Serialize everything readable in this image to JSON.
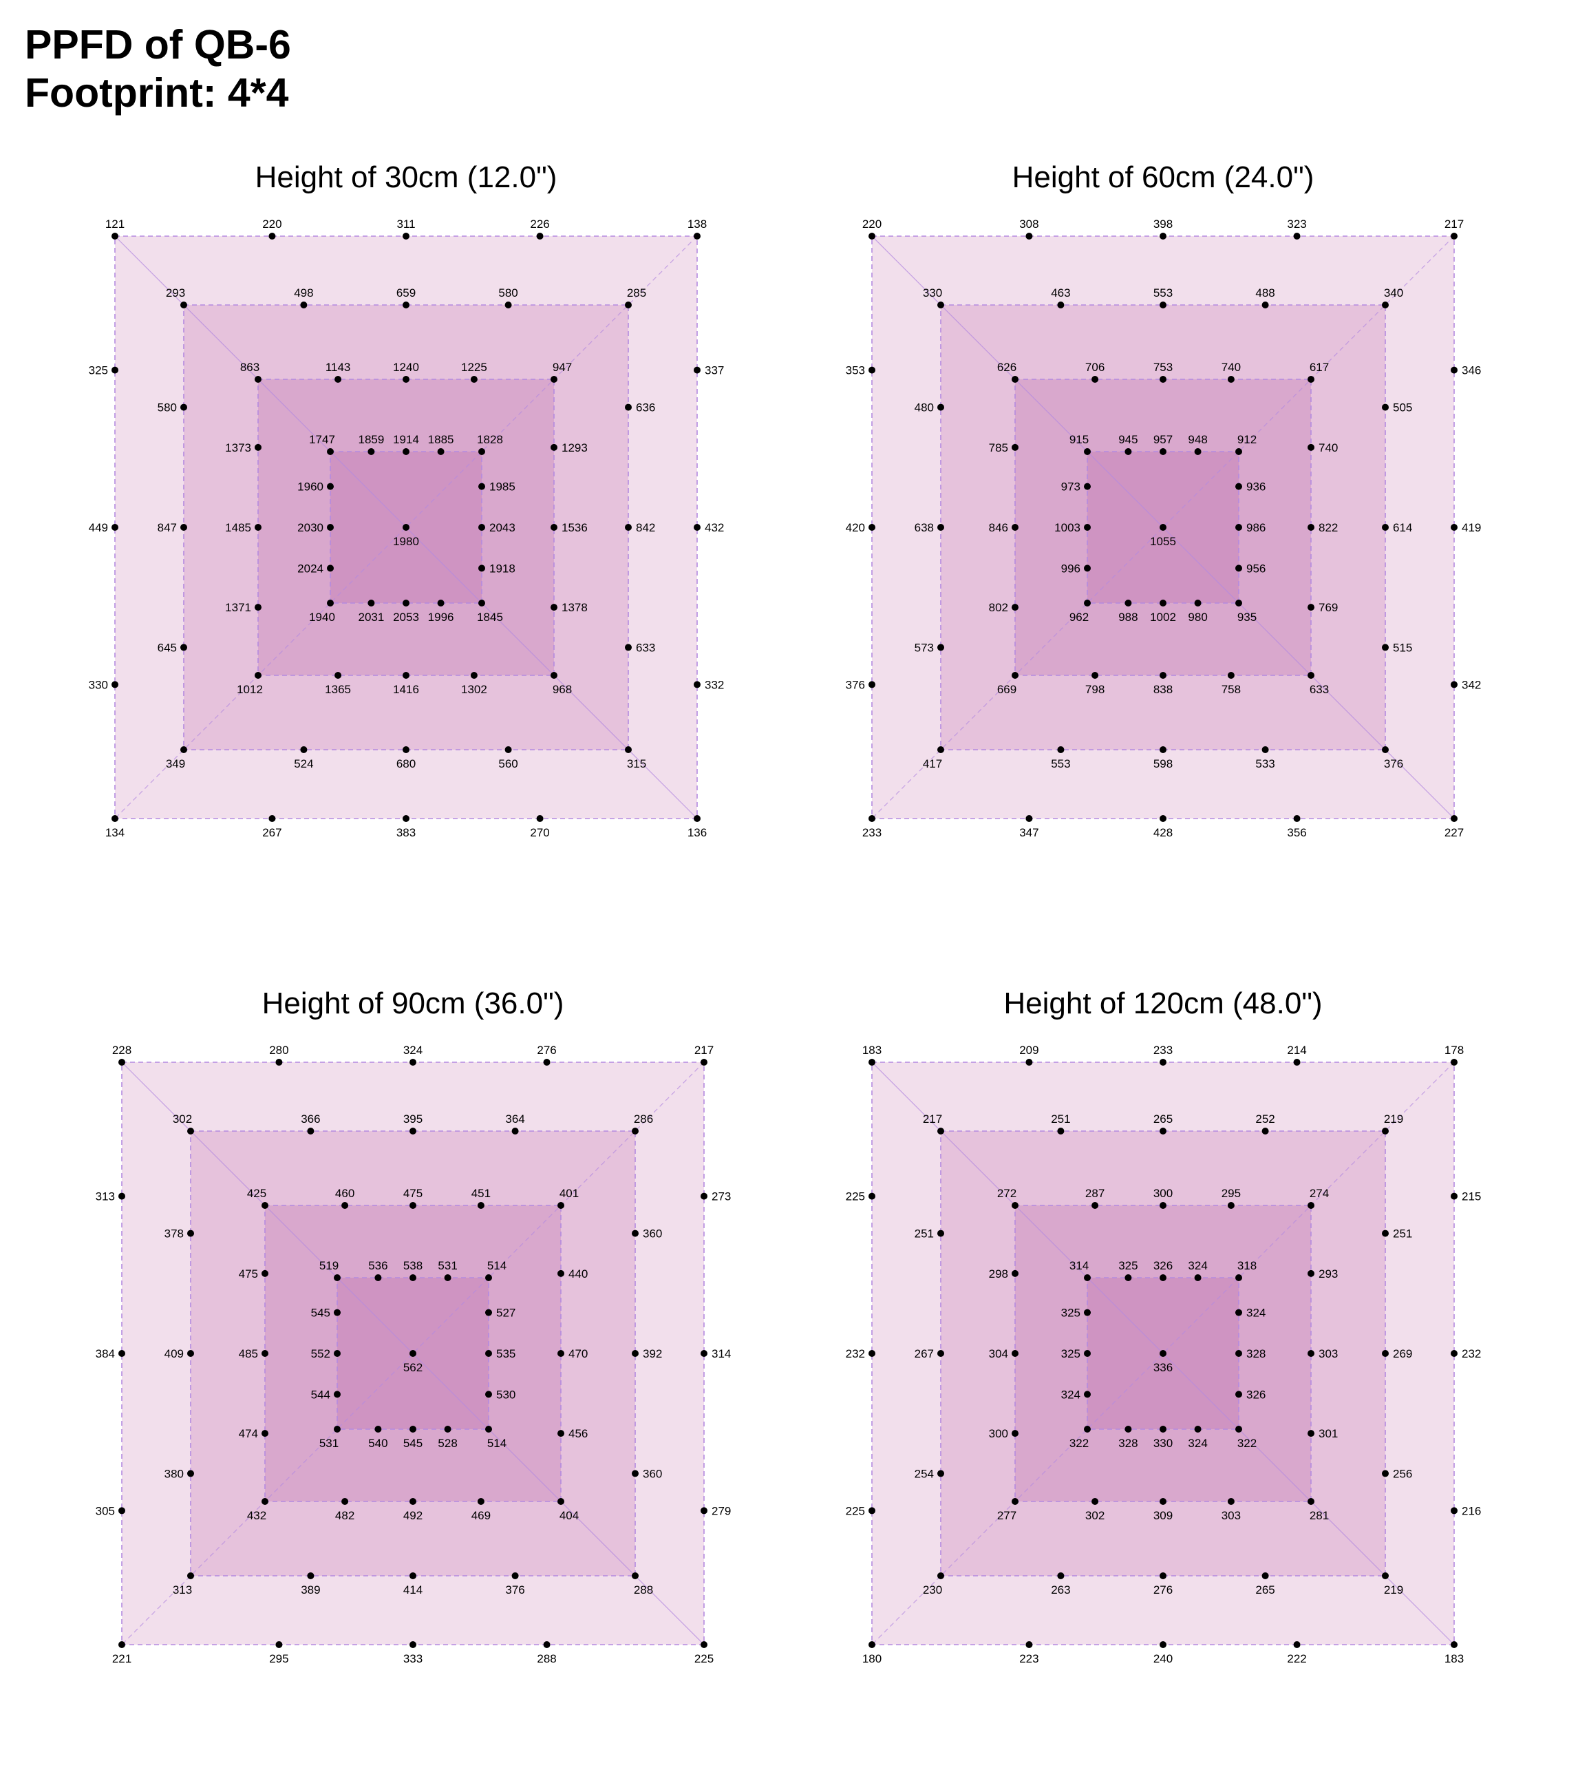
{
  "header": {
    "title_line1": "PPFD of QB-6",
    "title_line2": "Footprint: 4*4"
  },
  "colors": {
    "ring_outer": "#f2dfec",
    "ring_2": "#e6c2dc",
    "ring_3": "#d9a8cd",
    "ring_inner": "#cf94c2",
    "border": "#b48ae0",
    "diagonal": "#b48ae0",
    "point": "#000000"
  },
  "chart_data": [
    {
      "type": "heatmap",
      "title": "Height of 30cm (12.0\")",
      "rings": [
        {
          "top": [
            121,
            220,
            311,
            226,
            138
          ],
          "right": [
            337,
            432,
            332
          ],
          "bottom": [
            136,
            270,
            383,
            267,
            134
          ],
          "left": [
            330,
            449,
            325
          ]
        },
        {
          "top": [
            293,
            498,
            659,
            580,
            285
          ],
          "right": [
            636,
            842,
            633
          ],
          "bottom": [
            315,
            560,
            680,
            524,
            349
          ],
          "left": [
            645,
            847,
            580
          ]
        },
        {
          "top": [
            863,
            1143,
            1240,
            1225,
            947
          ],
          "right": [
            1293,
            1536,
            1378
          ],
          "bottom": [
            968,
            1302,
            1416,
            1365,
            1012
          ],
          "left": [
            1371,
            1485,
            1373
          ]
        },
        {
          "top": [
            1747,
            1859,
            1914,
            1885,
            1828
          ],
          "right": [
            1985,
            2043,
            1918
          ],
          "bottom": [
            1845,
            1996,
            2053,
            2031,
            1940
          ],
          "left": [
            2024,
            2030,
            1960
          ]
        }
      ],
      "center": 1980
    },
    {
      "type": "heatmap",
      "title": "Height of 60cm (24.0\")",
      "rings": [
        {
          "top": [
            220,
            308,
            398,
            323,
            217
          ],
          "right": [
            346,
            419,
            342
          ],
          "bottom": [
            227,
            356,
            428,
            347,
            233
          ],
          "left": [
            376,
            420,
            353
          ]
        },
        {
          "top": [
            330,
            463,
            553,
            488,
            340
          ],
          "right": [
            505,
            614,
            515
          ],
          "bottom": [
            376,
            533,
            598,
            553,
            417
          ],
          "left": [
            573,
            638,
            480
          ]
        },
        {
          "top": [
            626,
            706,
            753,
            740,
            617
          ],
          "right": [
            740,
            822,
            769
          ],
          "bottom": [
            633,
            758,
            838,
            798,
            669
          ],
          "left": [
            802,
            846,
            785
          ]
        },
        {
          "top": [
            915,
            945,
            957,
            948,
            912
          ],
          "right": [
            936,
            986,
            956
          ],
          "bottom": [
            935,
            980,
            1002,
            988,
            962
          ],
          "left": [
            996,
            1003,
            973
          ]
        }
      ],
      "center": 1055
    },
    {
      "type": "heatmap",
      "title": "Height of 90cm (36.0\")",
      "rings": [
        {
          "top": [
            228,
            280,
            324,
            276,
            217
          ],
          "right": [
            273,
            314,
            279
          ],
          "bottom": [
            225,
            288,
            333,
            295,
            221
          ],
          "left": [
            305,
            384,
            313
          ]
        },
        {
          "top": [
            302,
            366,
            395,
            364,
            286
          ],
          "right": [
            360,
            392,
            360
          ],
          "bottom": [
            288,
            376,
            414,
            389,
            313
          ],
          "left": [
            380,
            409,
            378
          ]
        },
        {
          "top": [
            425,
            460,
            475,
            451,
            401
          ],
          "right": [
            440,
            470,
            456
          ],
          "bottom": [
            404,
            469,
            492,
            482,
            432
          ],
          "left": [
            474,
            485,
            475
          ]
        },
        {
          "top": [
            519,
            536,
            538,
            531,
            514
          ],
          "right": [
            527,
            535,
            530
          ],
          "bottom": [
            514,
            528,
            545,
            540,
            531
          ],
          "left": [
            544,
            552,
            545
          ]
        }
      ],
      "center": 562
    },
    {
      "type": "heatmap",
      "title": "Height of 120cm (48.0\")",
      "rings": [
        {
          "top": [
            183,
            209,
            233,
            214,
            178
          ],
          "right": [
            215,
            232,
            216
          ],
          "bottom": [
            183,
            222,
            240,
            223,
            180
          ],
          "left": [
            225,
            232,
            225
          ]
        },
        {
          "top": [
            217,
            251,
            265,
            252,
            219
          ],
          "right": [
            251,
            269,
            256
          ],
          "bottom": [
            219,
            265,
            276,
            263,
            230
          ],
          "left": [
            254,
            267,
            251
          ]
        },
        {
          "top": [
            272,
            287,
            300,
            295,
            274
          ],
          "right": [
            293,
            303,
            301
          ],
          "bottom": [
            281,
            303,
            309,
            302,
            277
          ],
          "left": [
            300,
            304,
            298
          ]
        },
        {
          "top": [
            314,
            325,
            326,
            324,
            318
          ],
          "right": [
            324,
            328,
            326
          ],
          "bottom": [
            322,
            324,
            330,
            328,
            322
          ],
          "left": [
            324,
            325,
            325
          ]
        }
      ],
      "center": 336
    }
  ]
}
